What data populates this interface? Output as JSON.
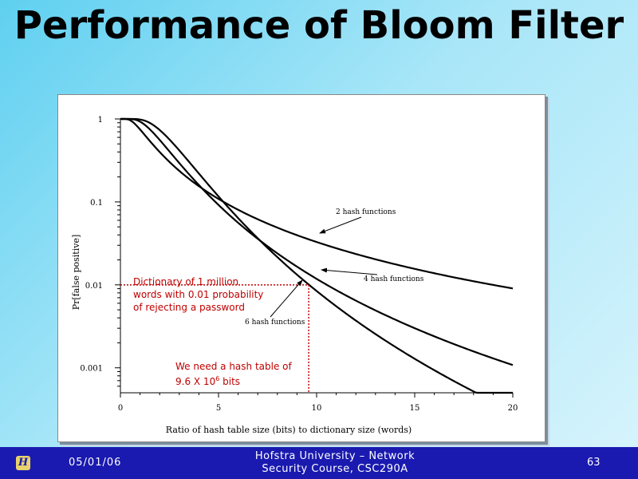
{
  "slide": {
    "title": "Performance of Bloom Filter"
  },
  "footer": {
    "logo": "hofstra-logo",
    "date": "05/01/06",
    "center": "Hofstra University – Network\nSecurity Course, CSC290A",
    "page": "63"
  },
  "annotations": {
    "dictionary_note": "Dictionary of 1 million\nwords with 0.01 probability\nof rejecting a password",
    "hash_table_note_prefix": "We need a hash table of\n9.6 X 10",
    "hash_table_note_sup": "6",
    "hash_table_note_suffix": " bits",
    "color": "#c00000"
  },
  "chart_data": {
    "type": "line",
    "title": "",
    "xlabel": "Ratio of hash table size (bits) to dictionary size (words)",
    "ylabel": "Pr[false positive]",
    "xlim": [
      0,
      20
    ],
    "ylim": [
      0.0005,
      1
    ],
    "yscale": "log",
    "xticks": [
      "0",
      "5",
      "10",
      "15",
      "20"
    ],
    "yticks": [
      "1",
      "0.1",
      "0.01",
      "0.001"
    ],
    "grid": false,
    "series": [
      {
        "name": "2 hash functions",
        "k": 2,
        "x": [
          0,
          1,
          2,
          3,
          4,
          5,
          6,
          8,
          10,
          12,
          15,
          20
        ],
        "y": [
          1,
          0.74,
          0.4,
          0.23,
          0.155,
          0.108,
          0.08,
          0.048,
          0.033,
          0.024,
          0.016,
          0.0092
        ]
      },
      {
        "name": "4 hash functions",
        "k": 4,
        "x": [
          0,
          1,
          2,
          3,
          4,
          5,
          6,
          8,
          10,
          12,
          15,
          20
        ],
        "y": [
          1,
          0.92,
          0.56,
          0.29,
          0.16,
          0.092,
          0.056,
          0.024,
          0.012,
          0.0063,
          0.0028,
          0.001
        ]
      },
      {
        "name": "6 hash functions",
        "k": 6,
        "x": [
          0,
          1,
          2,
          3,
          4,
          5,
          6,
          8,
          10,
          12,
          15,
          20
        ],
        "y": [
          1,
          0.97,
          0.77,
          0.39,
          0.19,
          0.1,
          0.055,
          0.019,
          0.0084,
          0.0039,
          0.0013,
          0.0005
        ]
      }
    ],
    "series_labels": [
      "2 hash functions",
      "4 hash functions",
      "6 hash functions"
    ],
    "reference": {
      "x": 9.6,
      "y": 0.01,
      "color": "#c00000"
    }
  }
}
